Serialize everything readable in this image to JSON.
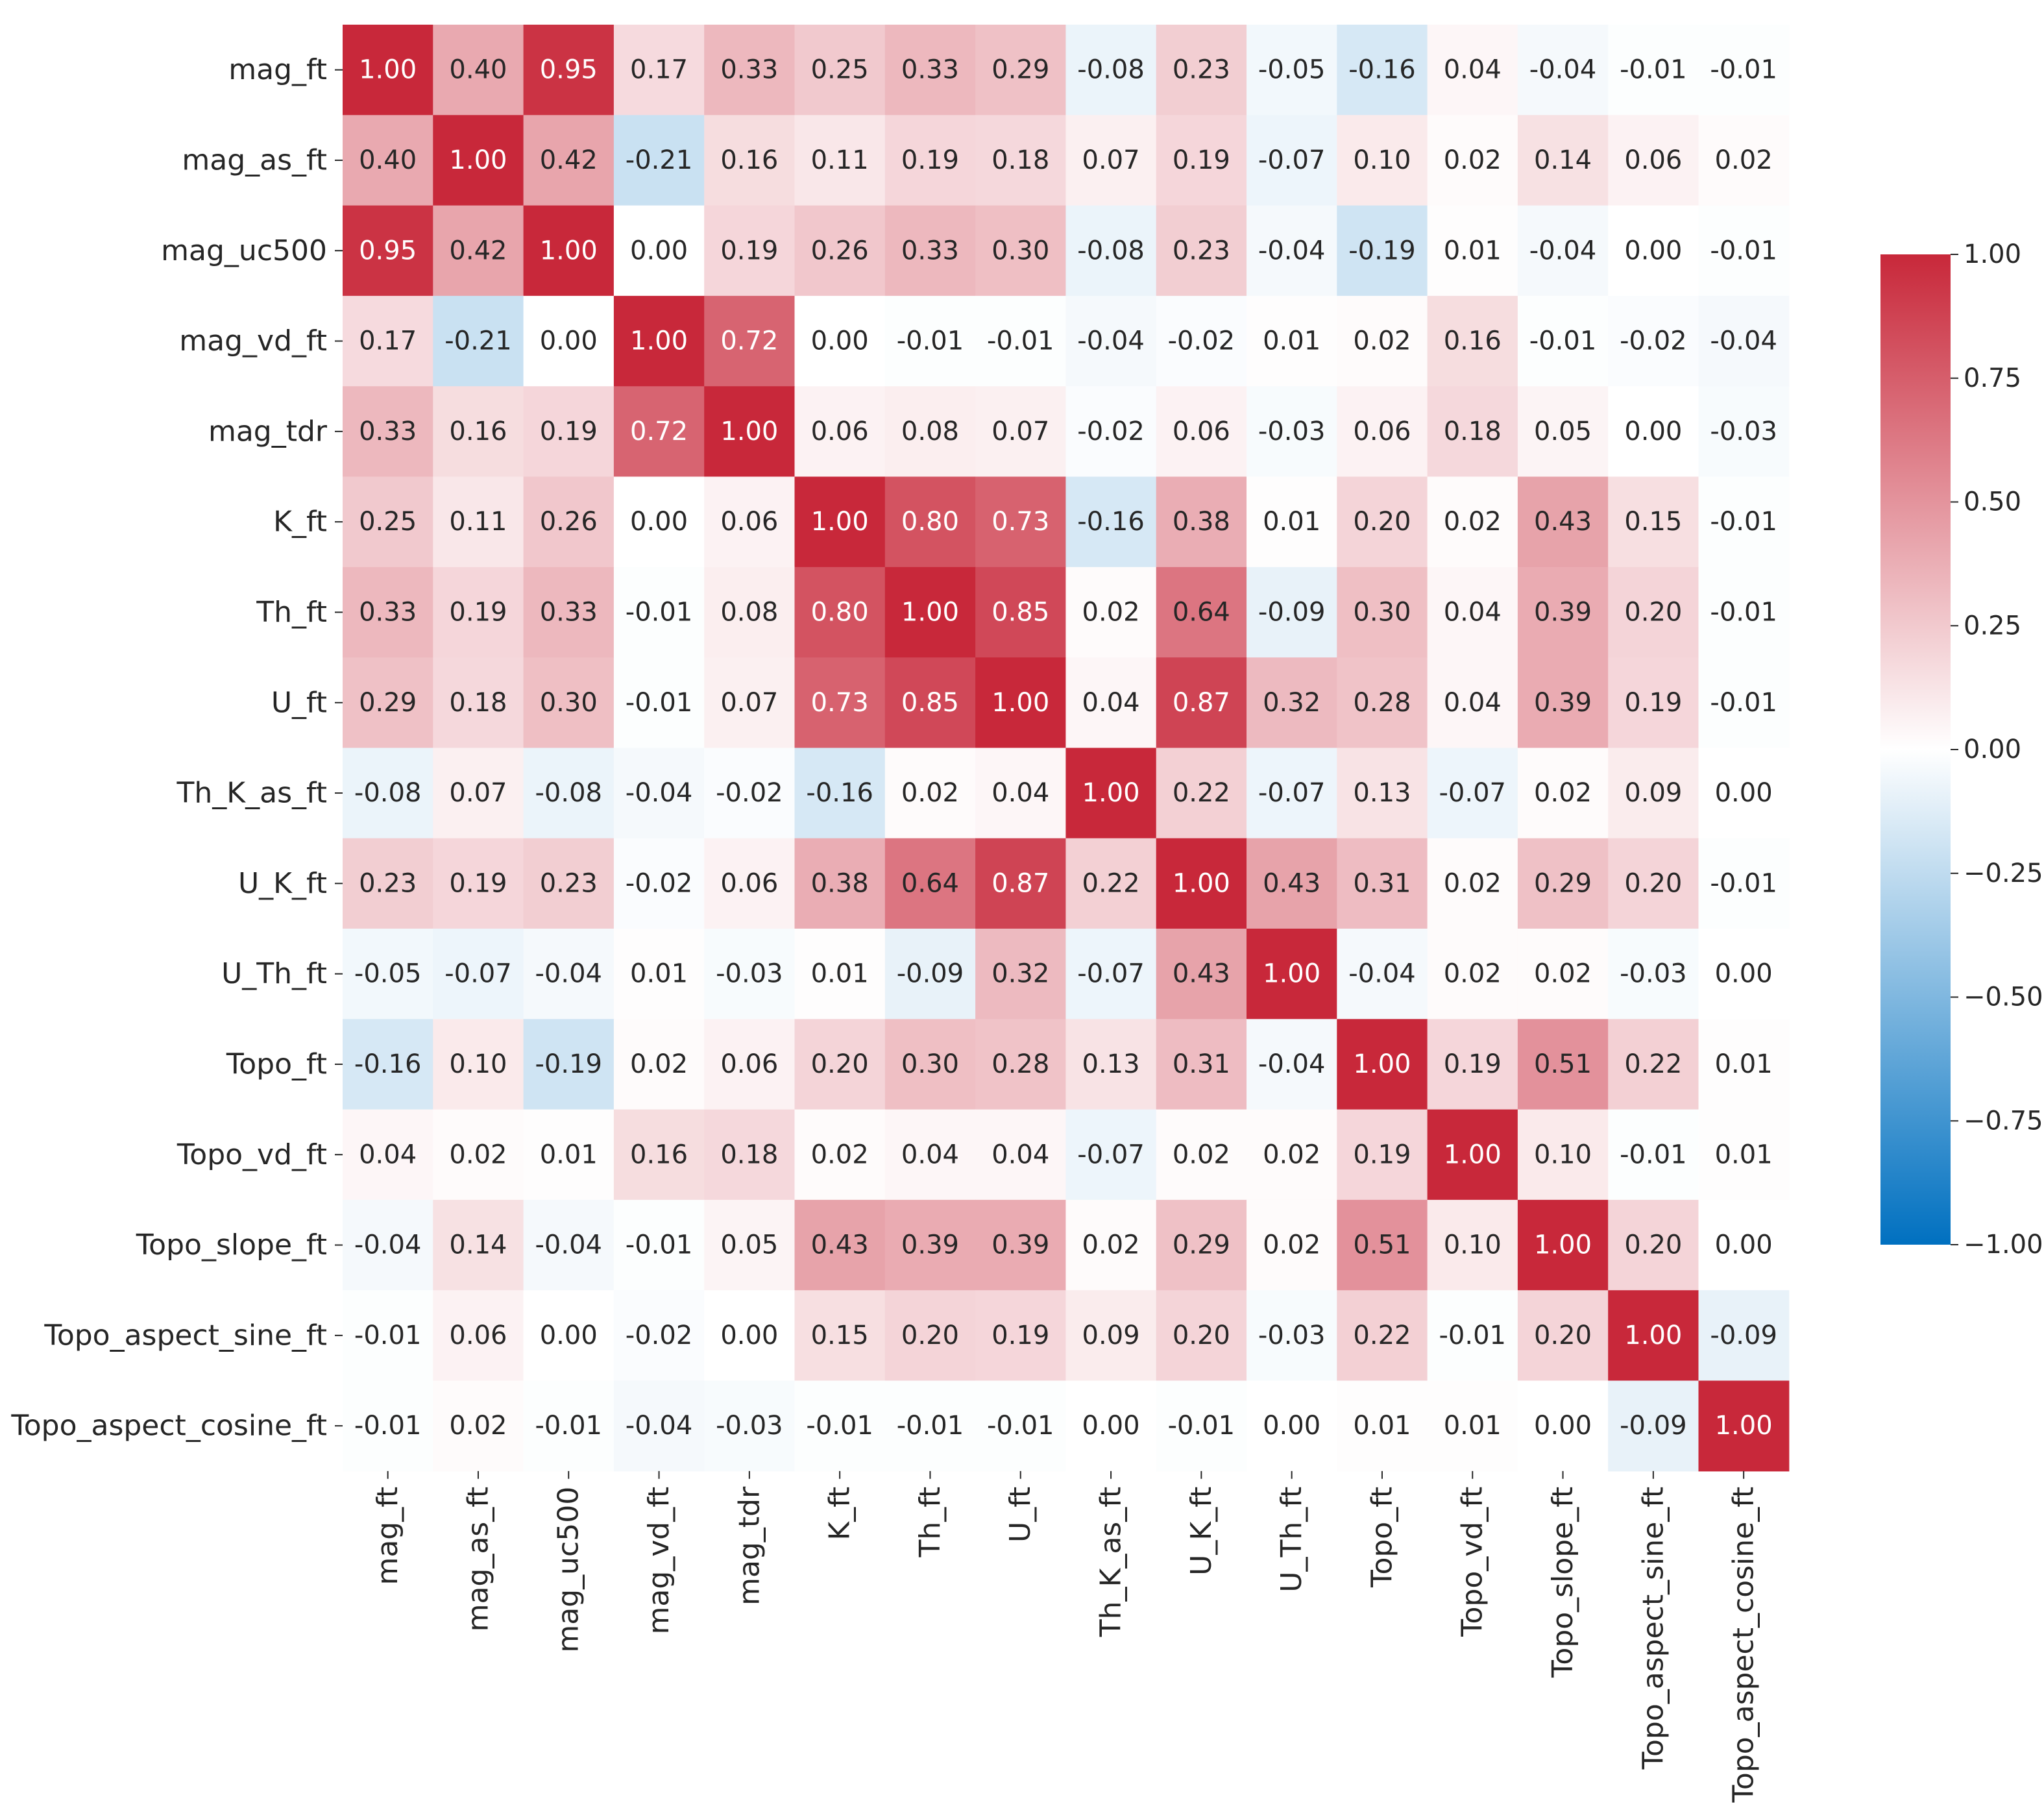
{
  "chart_data": {
    "type": "heatmap",
    "title": "",
    "xlabel": "",
    "ylabel": "",
    "labels": [
      "mag_ft",
      "mag_as_ft",
      "mag_uc500",
      "mag_vd_ft",
      "mag_tdr",
      "K_ft",
      "Th_ft",
      "U_ft",
      "Th_K_as_ft",
      "U_K_ft",
      "U_Th_ft",
      "Topo_ft",
      "Topo_vd_ft",
      "Topo_slope_ft",
      "Topo_aspect_sine_ft",
      "Topo_aspect_cosine_ft"
    ],
    "values": [
      [
        1.0,
        0.4,
        0.95,
        0.17,
        0.33,
        0.25,
        0.33,
        0.29,
        -0.08,
        0.23,
        -0.05,
        -0.16,
        0.04,
        -0.04,
        -0.01,
        -0.01
      ],
      [
        0.4,
        1.0,
        0.42,
        -0.21,
        0.16,
        0.11,
        0.19,
        0.18,
        0.07,
        0.19,
        -0.07,
        0.1,
        0.02,
        0.14,
        0.06,
        0.02
      ],
      [
        0.95,
        0.42,
        1.0,
        0.0,
        0.19,
        0.26,
        0.33,
        0.3,
        -0.08,
        0.23,
        -0.04,
        -0.19,
        0.01,
        -0.04,
        0.0,
        -0.01
      ],
      [
        0.17,
        -0.21,
        0.0,
        1.0,
        0.72,
        0.0,
        -0.01,
        -0.01,
        -0.04,
        -0.02,
        0.01,
        0.02,
        0.16,
        -0.01,
        -0.02,
        -0.04
      ],
      [
        0.33,
        0.16,
        0.19,
        0.72,
        1.0,
        0.06,
        0.08,
        0.07,
        -0.02,
        0.06,
        -0.03,
        0.06,
        0.18,
        0.05,
        0.0,
        -0.03
      ],
      [
        0.25,
        0.11,
        0.26,
        0.0,
        0.06,
        1.0,
        0.8,
        0.73,
        -0.16,
        0.38,
        0.01,
        0.2,
        0.02,
        0.43,
        0.15,
        -0.01
      ],
      [
        0.33,
        0.19,
        0.33,
        -0.01,
        0.08,
        0.8,
        1.0,
        0.85,
        0.02,
        0.64,
        -0.09,
        0.3,
        0.04,
        0.39,
        0.2,
        -0.01
      ],
      [
        0.29,
        0.18,
        0.3,
        -0.01,
        0.07,
        0.73,
        0.85,
        1.0,
        0.04,
        0.87,
        0.32,
        0.28,
        0.04,
        0.39,
        0.19,
        -0.01
      ],
      [
        -0.08,
        0.07,
        -0.08,
        -0.04,
        -0.02,
        -0.16,
        0.02,
        0.04,
        1.0,
        0.22,
        -0.07,
        0.13,
        -0.07,
        0.02,
        0.09,
        0.0
      ],
      [
        0.23,
        0.19,
        0.23,
        -0.02,
        0.06,
        0.38,
        0.64,
        0.87,
        0.22,
        1.0,
        0.43,
        0.31,
        0.02,
        0.29,
        0.2,
        -0.01
      ],
      [
        -0.05,
        -0.07,
        -0.04,
        0.01,
        -0.03,
        0.01,
        -0.09,
        0.32,
        -0.07,
        0.43,
        1.0,
        -0.04,
        0.02,
        0.02,
        -0.03,
        0.0
      ],
      [
        -0.16,
        0.1,
        -0.19,
        0.02,
        0.06,
        0.2,
        0.3,
        0.28,
        0.13,
        0.31,
        -0.04,
        1.0,
        0.19,
        0.51,
        0.22,
        0.01
      ],
      [
        0.04,
        0.02,
        0.01,
        0.16,
        0.18,
        0.02,
        0.04,
        0.04,
        -0.07,
        0.02,
        0.02,
        0.19,
        1.0,
        0.1,
        -0.01,
        0.01
      ],
      [
        -0.04,
        0.14,
        -0.04,
        -0.01,
        0.05,
        0.43,
        0.39,
        0.39,
        0.02,
        0.29,
        0.02,
        0.51,
        0.1,
        1.0,
        0.2,
        0.0
      ],
      [
        -0.01,
        0.06,
        0.0,
        -0.02,
        0.0,
        0.15,
        0.2,
        0.19,
        0.09,
        0.2,
        -0.03,
        0.22,
        -0.01,
        0.2,
        1.0,
        -0.09
      ],
      [
        -0.01,
        0.02,
        -0.01,
        -0.04,
        -0.03,
        -0.01,
        -0.01,
        -0.01,
        0.0,
        -0.01,
        0.0,
        0.01,
        0.01,
        0.0,
        -0.09,
        1.0
      ]
    ],
    "vmin": -1.0,
    "vmax": 1.0,
    "colormap": [
      "#0070c0",
      "#ffffff",
      "#c8283a"
    ],
    "colorbar_ticks": [
      "1.00",
      "0.75",
      "0.50",
      "0.25",
      "0.00",
      "−0.25",
      "−0.50",
      "−0.75",
      "−1.00"
    ],
    "colorbar_tick_values": [
      1.0,
      0.75,
      0.5,
      0.25,
      0.0,
      -0.25,
      -0.5,
      -0.75,
      -1.0
    ],
    "legend_placement": "right",
    "annotated": true,
    "grid": false
  }
}
